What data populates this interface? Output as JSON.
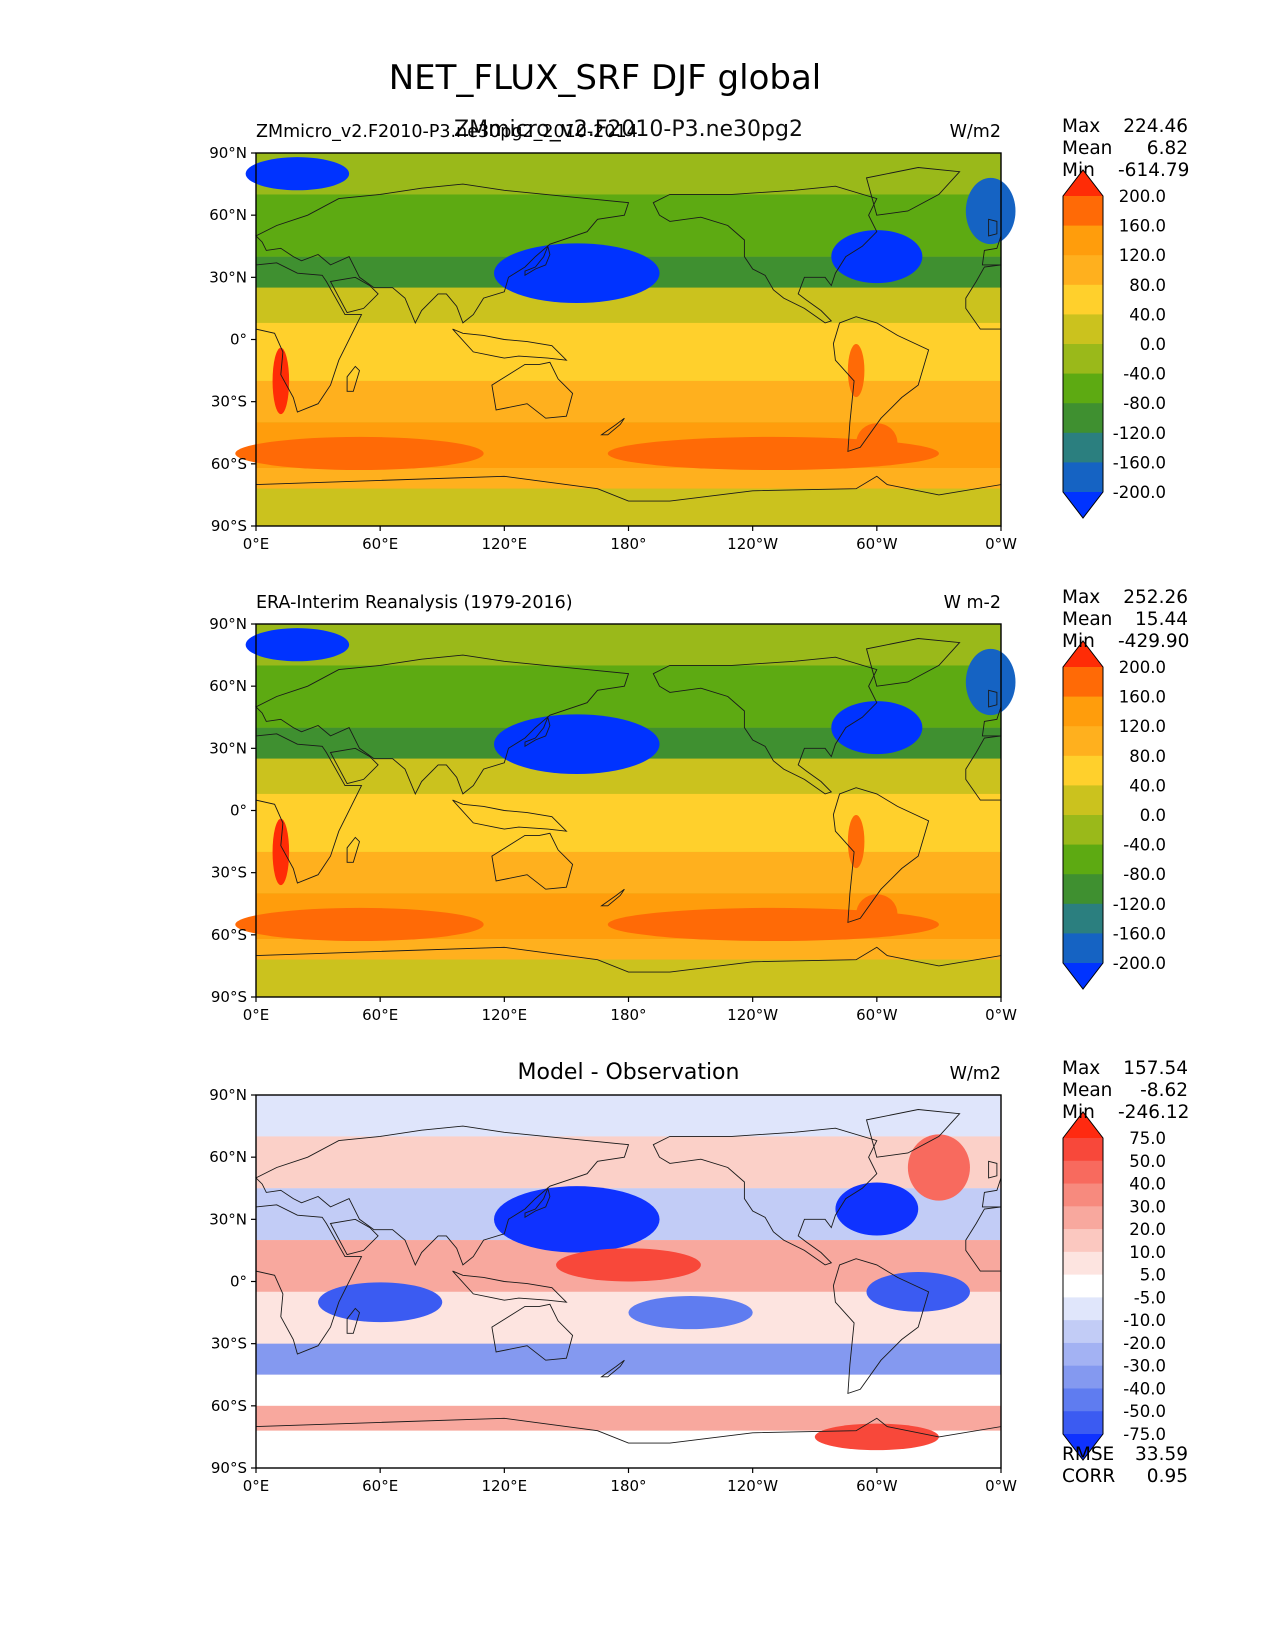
{
  "figure": {
    "title": "NET_FLUX_SRF DJF global"
  },
  "panels": [
    {
      "left_title": "ZMmicro_v2.F2010-P3.ne30pg2_2010-2014",
      "center_title": "ZMmicro_v2.F2010-P3.ne30pg2",
      "units": "W/m2",
      "stats": {
        "max_label": "Max",
        "max": "224.46",
        "mean_label": "Mean",
        "mean": "6.82",
        "min_label": "Min",
        "min": "-614.79"
      },
      "colorbar": {
        "labels": [
          "200.0",
          "160.0",
          "120.0",
          "80.0",
          "40.0",
          "0.0",
          "-40.0",
          "-80.0",
          "-120.0",
          "-160.0",
          "-200.0"
        ],
        "colors": [
          "#ff2c06",
          "#ff6a06",
          "#ff9d0c",
          "#ffb01e",
          "#ffd02c",
          "#cbc21e",
          "#9ab91a",
          "#5daa12",
          "#3f9030",
          "#2b7f7f",
          "#1563c3",
          "#0033ff"
        ]
      }
    },
    {
      "left_title": "ERA-Interim Reanalysis (1979-2016)",
      "center_title": "",
      "units": "W m-2",
      "stats": {
        "max_label": "Max",
        "max": "252.26",
        "mean_label": "Mean",
        "mean": "15.44",
        "min_label": "Min",
        "min": "-429.90"
      },
      "colorbar": {
        "labels": [
          "200.0",
          "160.0",
          "120.0",
          "80.0",
          "40.0",
          "0.0",
          "-40.0",
          "-80.0",
          "-120.0",
          "-160.0",
          "-200.0"
        ],
        "colors": [
          "#ff2c06",
          "#ff6a06",
          "#ff9d0c",
          "#ffb01e",
          "#ffd02c",
          "#cbc21e",
          "#9ab91a",
          "#5daa12",
          "#3f9030",
          "#2b7f7f",
          "#1563c3",
          "#0033ff"
        ]
      }
    },
    {
      "left_title": "",
      "center_title": "Model - Observation",
      "units": "W/m2",
      "stats": {
        "max_label": "Max",
        "max": "157.54",
        "mean_label": "Mean",
        "mean": "-8.62",
        "min_label": "Min",
        "min": "-246.12"
      },
      "extra_stats": {
        "rmse_label": "RMSE",
        "rmse": "33.59",
        "corr_label": "CORR",
        "corr": "0.95"
      },
      "colorbar": {
        "labels": [
          "75.0",
          "50.0",
          "40.0",
          "30.0",
          "20.0",
          "10.0",
          "5.0",
          "-5.0",
          "-10.0",
          "-20.0",
          "-30.0",
          "-40.0",
          "-50.0",
          "-75.0"
        ],
        "colors": [
          "#ff2a10",
          "#f8483a",
          "#f86a5e",
          "#f78a7e",
          "#f8a89e",
          "#fbc8c0",
          "#fde4e0",
          "#ffffff",
          "#e0e6fb",
          "#c2ccf6",
          "#a3b2f3",
          "#8499f0",
          "#5f7cf0",
          "#3b5bf2",
          "#0f32ff"
        ]
      }
    }
  ],
  "axes": {
    "lat_ticks": [
      "90°N",
      "60°N",
      "30°N",
      "0°",
      "30°S",
      "60°S",
      "90°S"
    ],
    "lon_ticks": [
      "0°E",
      "60°E",
      "120°E",
      "180°",
      "120°W",
      "60°W",
      "0°W"
    ]
  },
  "chart_data": [
    {
      "type": "heatmap",
      "title": "ZMmicro_v2.F2010-P3.ne30pg2",
      "units": "W/m2",
      "x_ticks": [
        "0°E",
        "60°E",
        "120°E",
        "180°",
        "120°W",
        "60°W",
        "0°W"
      ],
      "y_ticks": [
        "90°N",
        "60°N",
        "30°N",
        "0°",
        "30°S",
        "60°S",
        "90°S"
      ],
      "xlim": [
        0,
        360
      ],
      "ylim": [
        -90,
        90
      ],
      "levels": [
        -200,
        -160,
        -120,
        -80,
        -40,
        0,
        40,
        80,
        120,
        160,
        200
      ],
      "stats": {
        "max": 224.46,
        "mean": 6.82,
        "min": -614.79
      }
    },
    {
      "type": "heatmap",
      "title": "ERA-Interim Reanalysis (1979-2016)",
      "units": "W m-2",
      "x_ticks": [
        "0°E",
        "60°E",
        "120°E",
        "180°",
        "120°W",
        "60°W",
        "0°W"
      ],
      "y_ticks": [
        "90°N",
        "60°N",
        "30°N",
        "0°",
        "30°S",
        "60°S",
        "90°S"
      ],
      "xlim": [
        0,
        360
      ],
      "ylim": [
        -90,
        90
      ],
      "levels": [
        -200,
        -160,
        -120,
        -80,
        -40,
        0,
        40,
        80,
        120,
        160,
        200
      ],
      "stats": {
        "max": 252.26,
        "mean": 15.44,
        "min": -429.9
      }
    },
    {
      "type": "heatmap",
      "title": "Model - Observation",
      "units": "W/m2",
      "x_ticks": [
        "0°E",
        "60°E",
        "120°E",
        "180°",
        "120°W",
        "60°W",
        "0°W"
      ],
      "y_ticks": [
        "90°N",
        "60°N",
        "30°N",
        "0°",
        "30°S",
        "60°S",
        "90°S"
      ],
      "xlim": [
        0,
        360
      ],
      "ylim": [
        -90,
        90
      ],
      "levels": [
        -75,
        -50,
        -40,
        -30,
        -20,
        -10,
        -5,
        5,
        10,
        20,
        30,
        40,
        50,
        75
      ],
      "stats": {
        "max": 157.54,
        "mean": -8.62,
        "min": -246.12,
        "rmse": 33.59,
        "corr": 0.95
      }
    }
  ]
}
